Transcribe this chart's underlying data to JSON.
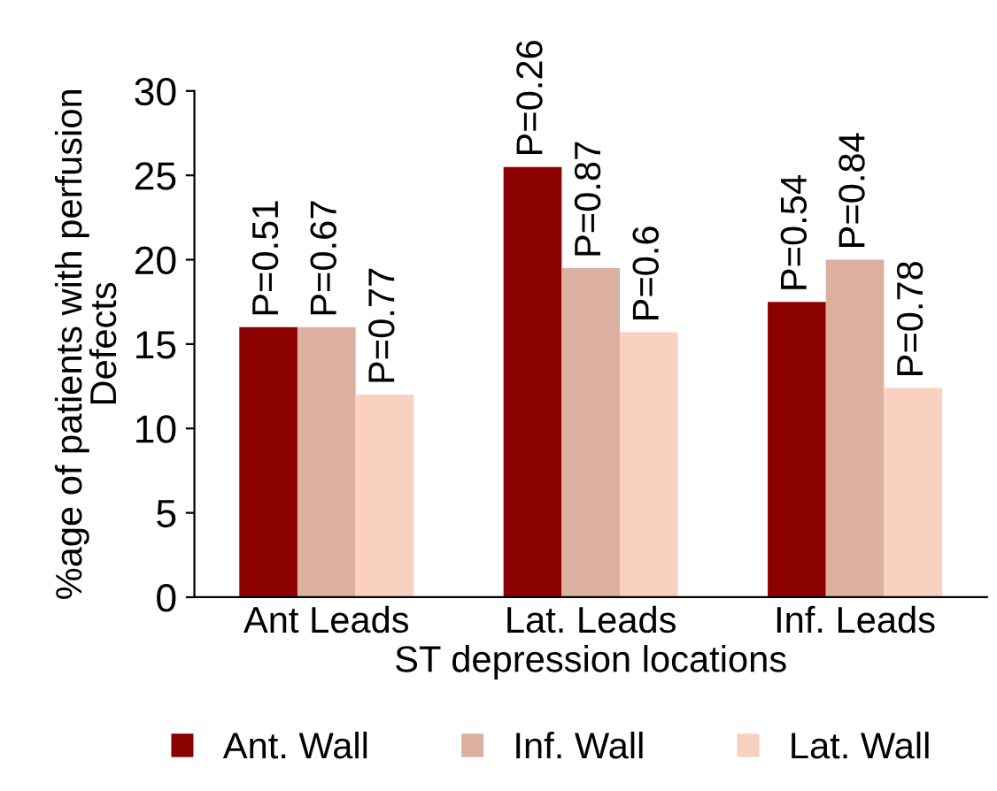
{
  "chart_data": {
    "type": "bar",
    "xlabel": "ST depression locations",
    "ylabel": "%age of patients with perfusion\nDefects",
    "categories": [
      "Ant Leads",
      "Lat. Leads",
      "Inf. Leads"
    ],
    "series": [
      {
        "name": "Ant. Wall",
        "color": "#8b0000",
        "values": [
          16,
          25.5,
          17.5
        ]
      },
      {
        "name": "Inf. Wall",
        "color": "#dcb0a0",
        "values": [
          16,
          19.5,
          20
        ]
      },
      {
        "name": "Lat. Wall",
        "color": "#fad0c0",
        "values": [
          12,
          15.7,
          12.4
        ]
      }
    ],
    "annotations": [
      "P=0.51",
      "P=0.67",
      "P=0.77",
      "P=0.26",
      "P=0.87",
      "P=0.6",
      "P=0.54",
      "P=0.84",
      "P=0.78"
    ],
    "ylim": [
      0,
      30
    ],
    "yticks": [
      0,
      5,
      10,
      15,
      20,
      25,
      30
    ],
    "grid": false,
    "legend": "bottom"
  }
}
